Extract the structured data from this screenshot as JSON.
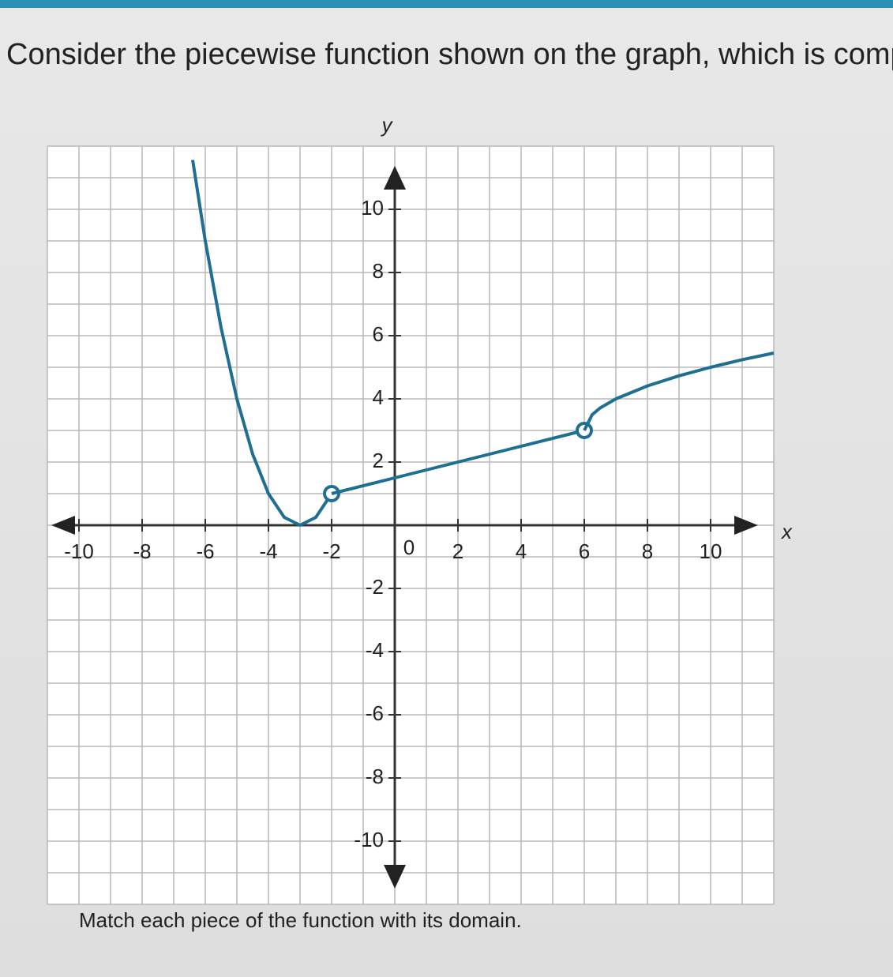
{
  "question": "Consider the piecewise function shown on the graph, which is comp",
  "instruction": "Match each piece of the function with its domain.",
  "chart_data": {
    "type": "line",
    "xlabel": "x",
    "ylabel": "y",
    "origin_label": "0",
    "xlim": [
      -11,
      12
    ],
    "ylim": [
      -12,
      12
    ],
    "xticks": [
      -10,
      -8,
      -6,
      -4,
      -2,
      2,
      4,
      6,
      8,
      10
    ],
    "yticks": [
      -10,
      -8,
      -6,
      -4,
      -2,
      2,
      4,
      6,
      8,
      10
    ],
    "grid": true,
    "series": [
      {
        "color": "#1f6f93",
        "open_end": true,
        "x": [
          -6.4,
          -6,
          -5.5,
          -5,
          -4.5,
          -4,
          -3.5,
          -3,
          -2.5,
          -2
        ],
        "values": [
          11.56,
          9,
          6.25,
          4,
          2.25,
          1,
          0.25,
          0,
          0.25,
          1
        ]
      },
      {
        "color": "#1f6f93",
        "open_end": true,
        "x": [
          -2,
          6
        ],
        "values": [
          1,
          3
        ]
      },
      {
        "color": "#1f6f93",
        "open_end": false,
        "x": [
          6,
          6.25,
          6.5,
          7,
          8,
          9,
          10,
          11,
          12
        ],
        "values": [
          3,
          3.5,
          3.71,
          4,
          4.41,
          4.73,
          5,
          5.24,
          5.45
        ]
      }
    ]
  }
}
